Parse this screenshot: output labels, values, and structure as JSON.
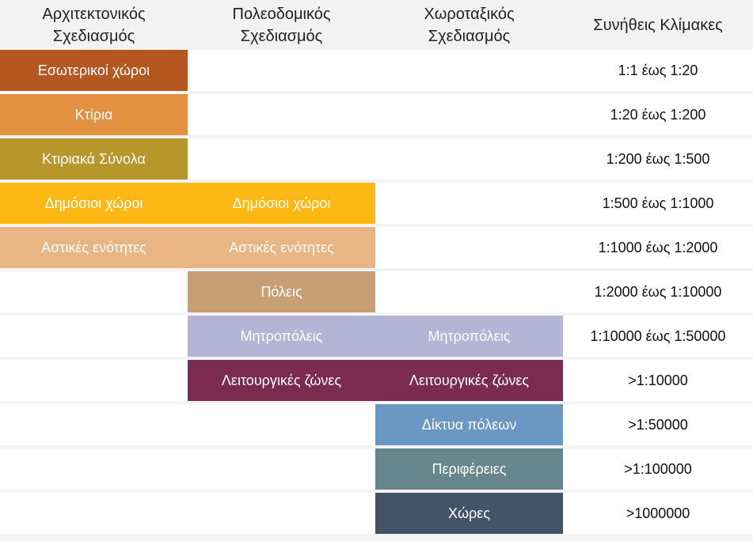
{
  "headers": [
    "Αρχιτεκτονικός\nΣχεδιασμός",
    "Πολεοδομικός\nΣχεδιασμός",
    "Χωροταξικός\nΣχεδιασμός",
    "Συνήθεις Κλίμακες"
  ],
  "rows": [
    {
      "cells": [
        "Εσωτερικοί χώροι",
        "",
        ""
      ],
      "scale": "1:1 έως 1:20"
    },
    {
      "cells": [
        "Κτίρια",
        "",
        ""
      ],
      "scale": "1:20 έως 1:200"
    },
    {
      "cells": [
        "Κτιριακά Σύνολα",
        "",
        ""
      ],
      "scale": "1:200 έως 1:500"
    },
    {
      "cells": [
        "Δημόσιοι χώροι",
        "Δημόσιοι χώροι",
        ""
      ],
      "scale": "1:500 έως 1:1000"
    },
    {
      "cells": [
        "Αστικές ενότητες",
        "Αστικές ενότητες",
        ""
      ],
      "scale": "1:1000 έως 1:2000"
    },
    {
      "cells": [
        "",
        "Πόλεις",
        ""
      ],
      "scale": "1:2000 έως 1:10000"
    },
    {
      "cells": [
        "",
        "Μητροπόλεις",
        "Μητροπόλεις"
      ],
      "scale": "1:10000 έως 1:50000"
    },
    {
      "cells": [
        "",
        "Λειτουργικές ζώνες",
        "Λειτουργικές ζώνες"
      ],
      "scale": ">1:10000"
    },
    {
      "cells": [
        "",
        "",
        "Δίκτυα πόλεων"
      ],
      "scale": ">1:50000"
    },
    {
      "cells": [
        "",
        "",
        "Περιφέρειες"
      ],
      "scale": ">1:100000"
    },
    {
      "cells": [
        "",
        "",
        "Χώρες"
      ],
      "scale": ">1000000"
    }
  ],
  "colors": [
    "#b45720",
    "#e39040",
    "#b7962a",
    "#fdb813",
    "#e9b585",
    "#c89e74",
    "#b4b4d6",
    "#7b2b50",
    "#6a98c2",
    "#67878e",
    "#435468"
  ]
}
